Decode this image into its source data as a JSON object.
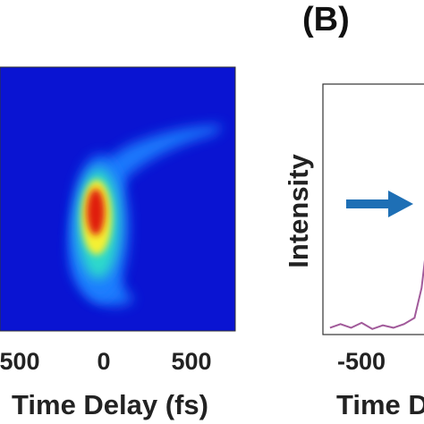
{
  "chart_data": [
    {
      "type": "heatmap",
      "xlabel": "Time Delay (fs)",
      "x_ticks": [
        "500",
        "0",
        "500"
      ],
      "colormap": "jet",
      "colors": {
        "background": "#0a14d2",
        "low": "#1f7fff",
        "mid": "#2de0c8",
        "high": "#f5f032",
        "peak": "#e01e10"
      }
    },
    {
      "type": "line",
      "panel_label": "(B)",
      "xlabel": "Time D",
      "ylabel": "Intensity",
      "x_ticks": [
        "-500"
      ],
      "series": [
        {
          "color": "#a15a9a",
          "x": [
            -560,
            -530,
            -500,
            -470,
            -440,
            -410,
            -380,
            -350,
            -320,
            -300,
            -280
          ],
          "y": [
            0.02,
            0.035,
            0.02,
            0.04,
            0.015,
            0.03,
            0.02,
            0.035,
            0.06,
            0.18,
            0.42
          ]
        }
      ],
      "annotation": {
        "type": "arrow",
        "color": "#1e6fb5"
      }
    }
  ]
}
